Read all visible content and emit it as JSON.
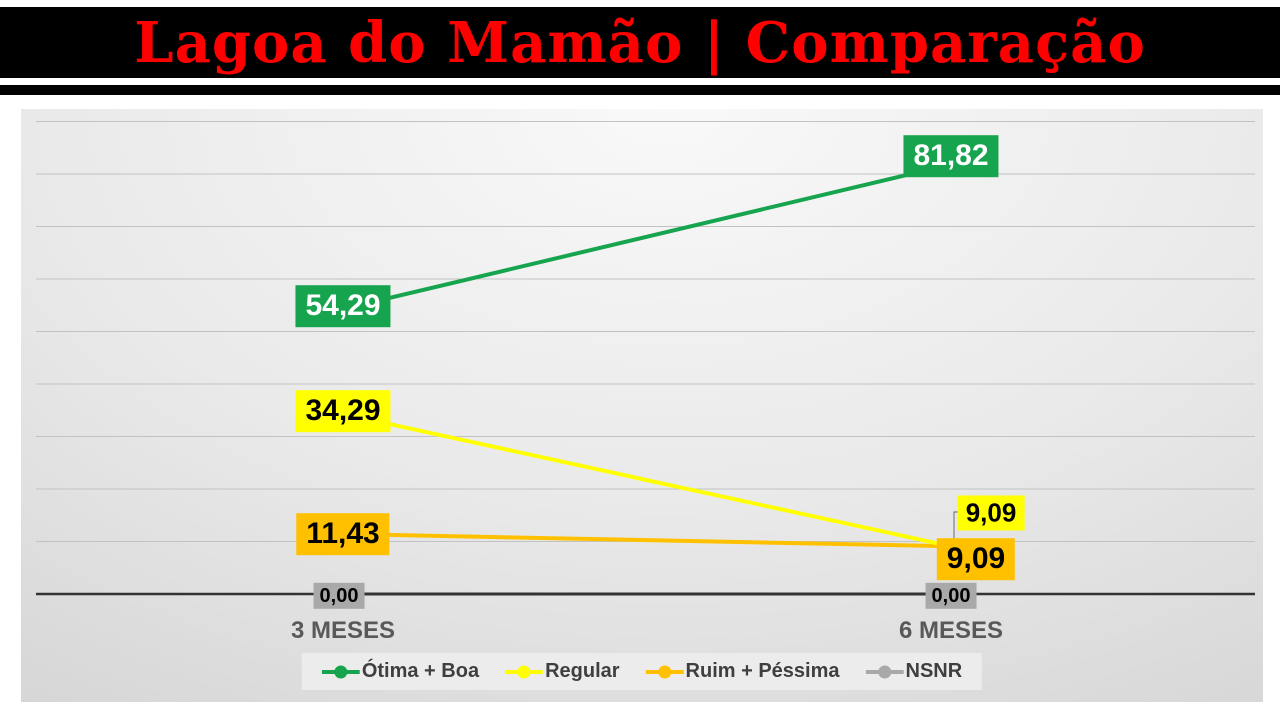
{
  "header": {
    "title": "Lagoa do Mamão | Comparação",
    "title_color": "#FF0000",
    "bar_color": "#000000"
  },
  "chart_data": {
    "type": "line",
    "title": "Lagoa do Mamão | Comparação",
    "categories": [
      "3 MESES",
      "6 MESES"
    ],
    "series": [
      {
        "name": "Ótima + Boa",
        "color": "#17A44E",
        "values": [
          54.29,
          81.82
        ],
        "data_labels": [
          "54,29",
          "81,82"
        ],
        "label_text_color": "#ffffff"
      },
      {
        "name": "Regular",
        "color": "#FFFF00",
        "values": [
          34.29,
          9.09
        ],
        "data_labels": [
          "34,29",
          "9,09"
        ],
        "label_text_color": "#000000"
      },
      {
        "name": "Ruim + Péssima",
        "color": "#FFC000",
        "values": [
          11.43,
          9.09
        ],
        "data_labels": [
          "11,43",
          "9,09"
        ],
        "label_text_color": "#000000"
      },
      {
        "name": "NSNR",
        "color": "#A9A9A9",
        "values": [
          0.0,
          0.0
        ],
        "data_labels": [
          "0,00",
          "0,00"
        ],
        "label_text_color": "#000000"
      }
    ],
    "ylim": [
      0,
      90
    ],
    "grid_step": 10,
    "grid": true,
    "legend_position": "bottom",
    "axis_color": "#333333",
    "gridline_color": "#c2c2c2",
    "category_label_color": "#595959",
    "legend_text_color": "#3f3f3f",
    "legend_bg": "#ececec",
    "leader_line_color": "#7f7f7f"
  }
}
